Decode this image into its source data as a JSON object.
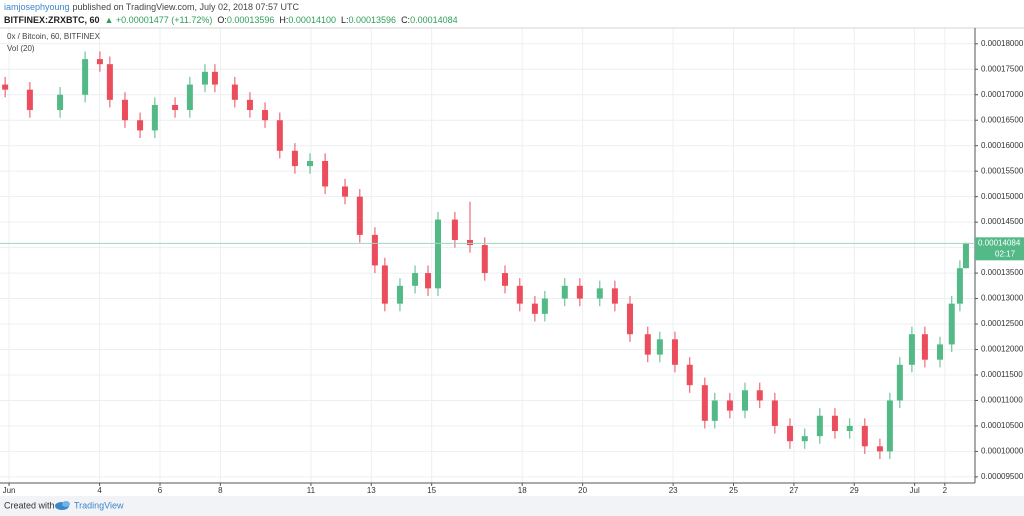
{
  "header": {
    "author": "iamjosephyoung",
    "published": "published on TradingView.com, July 02, 2018 07:57 UTC",
    "symbol": "BITFINEX:ZRXBTC, 60",
    "change": "▲ +0.00001477 (+11.72%)",
    "ohlc": [
      {
        "key": "O:",
        "value": "0.00013596"
      },
      {
        "key": "H:",
        "value": "0.00014100"
      },
      {
        "key": "L:",
        "value": "0.00013596"
      },
      {
        "key": "C:",
        "value": "0.00014084"
      }
    ]
  },
  "chart_data": {
    "type": "candlestick",
    "legend": "0x / Bitcoin, 60, BITFINEX",
    "volume_legend": "Vol (20)",
    "up_color": "#53b987",
    "down_color": "#eb4d5c",
    "grid": true,
    "last_price_label": "0.00014084",
    "countdown": "02:17",
    "x": [
      0.87,
      1.69,
      2.69,
      3.52,
      4.01,
      4.34,
      4.84,
      5.34,
      5.83,
      6.5,
      6.99,
      7.49,
      7.82,
      8.48,
      8.98,
      9.48,
      9.97,
      10.47,
      10.97,
      11.47,
      12.13,
      12.62,
      13.12,
      13.45,
      13.95,
      14.45,
      14.88,
      15.21,
      15.77,
      16.27,
      16.76,
      17.43,
      17.92,
      18.42,
      18.75,
      19.41,
      19.91,
      20.57,
      21.07,
      21.57,
      22.16,
      22.56,
      23.06,
      23.55,
      24.05,
      24.38,
      24.88,
      25.38,
      25.87,
      26.37,
      26.87,
      27.36,
      27.86,
      28.36,
      28.85,
      29.35,
      29.85,
      30.18,
      30.51,
      30.91,
      31.34,
      31.84,
      32.23,
      32.5,
      32.7
    ],
    "open": [
      0.000172,
      0.000171,
      0.000167,
      0.00017,
      0.000177,
      0.000176,
      0.000169,
      0.000165,
      0.000163,
      0.000168,
      0.000167,
      0.000172,
      0.0001745,
      0.000172,
      0.000169,
      0.000167,
      0.000165,
      0.000159,
      0.000156,
      0.000157,
      0.000152,
      0.00015,
      0.0001425,
      0.0001365,
      0.000129,
      0.0001325,
      0.000135,
      0.000132,
      0.0001455,
      0.0001415,
      0.0001405,
      0.000135,
      0.0001325,
      0.000129,
      0.000127,
      0.00013,
      0.0001325,
      0.00013,
      0.000132,
      0.000129,
      0.000123,
      0.000119,
      0.000122,
      0.000117,
      0.000113,
      0.000106,
      0.00011,
      0.000108,
      0.000112,
      0.00011,
      0.000105,
      0.000102,
      0.000103,
      0.000107,
      0.000104,
      0.000105,
      0.000101,
      0.0001,
      0.00011,
      0.000117,
      0.000123,
      0.000118,
      0.000121,
      0.000129,
      0.00013596
    ],
    "high": [
      0.0001735,
      0.0001725,
      0.0001715,
      0.0001785,
      0.0001785,
      0.0001775,
      0.0001705,
      0.0001665,
      0.0001695,
      0.0001695,
      0.0001735,
      0.000176,
      0.000176,
      0.0001735,
      0.0001705,
      0.0001685,
      0.0001665,
      0.0001605,
      0.0001585,
      0.0001585,
      0.0001535,
      0.0001515,
      0.000144,
      0.000138,
      0.000134,
      0.0001365,
      0.0001365,
      0.000147,
      0.000147,
      0.000149,
      0.000142,
      0.0001365,
      0.000134,
      0.0001305,
      0.0001315,
      0.000134,
      0.000134,
      0.0001335,
      0.0001335,
      0.0001305,
      0.0001245,
      0.0001235,
      0.0001235,
      0.0001185,
      0.0001145,
      0.0001115,
      0.0001115,
      0.0001135,
      0.0001135,
      0.0001115,
      0.0001065,
      0.0001045,
      0.0001085,
      0.0001085,
      0.0001065,
      0.0001065,
      0.0001025,
      0.0001115,
      0.0001185,
      0.0001245,
      0.0001245,
      0.0001225,
      0.0001305,
      0.0001375,
      0.000141
    ],
    "low": [
      0.0001695,
      0.0001655,
      0.0001655,
      0.0001685,
      0.0001745,
      0.0001675,
      0.0001635,
      0.0001615,
      0.0001615,
      0.0001655,
      0.0001655,
      0.0001705,
      0.0001705,
      0.0001675,
      0.0001655,
      0.0001635,
      0.0001575,
      0.0001545,
      0.0001545,
      0.0001505,
      0.0001485,
      0.000141,
      0.000135,
      0.0001275,
      0.0001275,
      0.000131,
      0.0001305,
      0.0001305,
      0.00014,
      0.000139,
      0.0001335,
      0.000131,
      0.0001275,
      0.0001255,
      0.0001255,
      0.0001285,
      0.0001285,
      0.0001285,
      0.0001275,
      0.0001215,
      0.0001175,
      0.0001175,
      0.0001155,
      0.0001115,
      0.0001045,
      0.0001045,
      0.0001065,
      0.0001065,
      0.0001085,
      0.0001035,
      0.0001005,
      0.0001005,
      0.0001015,
      0.0001025,
      0.0001025,
      9.95e-05,
      9.85e-05,
      9.85e-05,
      0.0001085,
      0.0001155,
      0.0001165,
      0.0001165,
      0.0001195,
      0.0001275,
      0.00013596
    ],
    "close": [
      0.000171,
      0.000167,
      0.00017,
      0.000177,
      0.000176,
      0.000169,
      0.000165,
      0.000163,
      0.000168,
      0.000167,
      0.000172,
      0.0001745,
      0.000172,
      0.000169,
      0.000167,
      0.000165,
      0.000159,
      0.000156,
      0.000157,
      0.000152,
      0.00015,
      0.0001425,
      0.0001365,
      0.000129,
      0.0001325,
      0.000135,
      0.000132,
      0.0001455,
      0.0001415,
      0.0001405,
      0.000135,
      0.0001325,
      0.000129,
      0.000127,
      0.00013,
      0.0001325,
      0.00013,
      0.000132,
      0.000129,
      0.000123,
      0.000119,
      0.000122,
      0.000117,
      0.000113,
      0.000106,
      0.00011,
      0.000108,
      0.000112,
      0.00011,
      0.000105,
      0.000102,
      0.000103,
      0.000107,
      0.000104,
      0.000105,
      0.000101,
      0.0001,
      0.00011,
      0.000117,
      0.000123,
      0.000118,
      0.000121,
      0.000129,
      0.00013596,
      0.00014084
    ],
    "xlim": [
      0.7,
      33.0
    ],
    "xticks": [
      {
        "value": 1,
        "label": "Jun"
      },
      4,
      6,
      8,
      11,
      13,
      15,
      18,
      20,
      23,
      25,
      27,
      29,
      {
        "value": 31,
        "label": "Jul"
      },
      {
        "value": 32,
        "label": "2"
      }
    ],
    "ylim": [
      9.38e-05,
      0.0001831
    ],
    "yticks": [
      {
        "value": 9.5e-05,
        "label": "0.00009500"
      },
      {
        "value": 0.0001,
        "label": "0.00010000"
      },
      {
        "value": 0.000105,
        "label": "0.00010500"
      },
      {
        "value": 0.00011,
        "label": "0.00011000"
      },
      {
        "value": 0.000115,
        "label": "0.00011500"
      },
      {
        "value": 0.00012,
        "label": "0.00012000"
      },
      {
        "value": 0.000125,
        "label": "0.00012500"
      },
      {
        "value": 0.00013,
        "label": "0.00013000"
      },
      {
        "value": 0.000135,
        "label": "0.00013500"
      },
      {
        "value": 0.00014,
        "label": "0.00014000"
      },
      {
        "value": 0.000145,
        "label": "0.00014500"
      },
      {
        "value": 0.00015,
        "label": "0.00015000"
      },
      {
        "value": 0.000155,
        "label": "0.00015500"
      },
      {
        "value": 0.00016,
        "label": "0.00016000"
      },
      {
        "value": 0.000165,
        "label": "0.00016500"
      },
      {
        "value": 0.00017,
        "label": "0.00017000"
      },
      {
        "value": 0.000175,
        "label": "0.00017500"
      },
      {
        "value": 0.00018,
        "label": "0.00018000"
      }
    ]
  },
  "footer": {
    "created": "Created with",
    "brand": "TradingView"
  }
}
